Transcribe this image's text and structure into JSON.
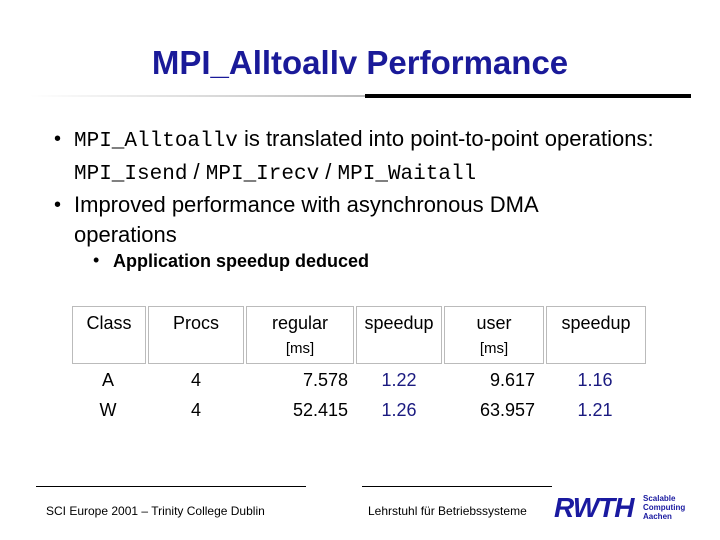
{
  "title": "MPI_Alltoallv Performance",
  "bullets": [
    [
      "MPI_Alltoallv",
      " is translated into point-to-point operations: ",
      "MPI_Isend",
      " / ",
      "MPI_Irecv",
      " / ",
      "MPI_Waitall"
    ],
    [
      "Improved performance with asynchronous DMA operations"
    ]
  ],
  "sub_bullet": "Application speedup deduced",
  "table": {
    "header": [
      [
        "Class"
      ],
      [
        "Procs"
      ],
      [
        "regular",
        "[ms]"
      ],
      [
        "speedup"
      ],
      [
        "user",
        "[ms]"
      ],
      [
        "speedup"
      ]
    ],
    "rows": [
      [
        "A",
        "4",
        "7.578",
        "1.22",
        "9.617",
        "1.16"
      ],
      [
        "W",
        "4",
        "52.415",
        "1.26",
        "63.957",
        "1.21"
      ]
    ]
  },
  "footer": {
    "left": "SCI Europe 2001 – Trinity College Dublin",
    "right": "Lehrstuhl für Betriebssysteme",
    "logo": "RWTH",
    "logo_lines": [
      "Scalable",
      "Computing",
      "Aachen"
    ]
  }
}
